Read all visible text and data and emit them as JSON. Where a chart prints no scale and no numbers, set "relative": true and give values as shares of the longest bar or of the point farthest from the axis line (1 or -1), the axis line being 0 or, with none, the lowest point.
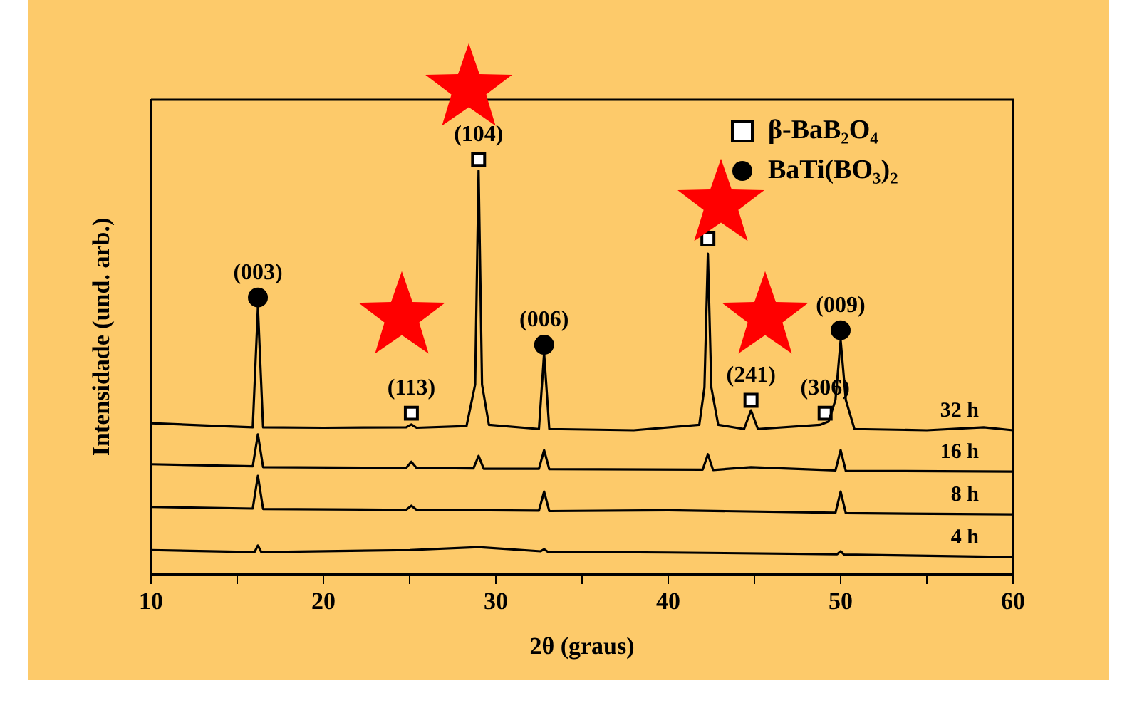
{
  "chart_data": {
    "type": "line",
    "relative": true,
    "xlabel": "2θ (graus)",
    "ylabel": "Intensidade (und. arb.)",
    "xlim": [
      10,
      60
    ],
    "xticks": [
      10,
      {
        "value": 15,
        "label": null
      },
      20,
      {
        "value": 25,
        "label": null
      },
      30,
      {
        "value": 35,
        "label": null
      },
      40,
      {
        "value": 45,
        "label": null
      },
      50,
      {
        "value": 55,
        "label": null
      },
      60
    ],
    "grid": false,
    "legend": "top right",
    "series": [
      {
        "name": "32 h",
        "color": "#000000",
        "x": [
          10,
          14,
          15.9,
          16.2,
          16.5,
          20,
          24.8,
          25.1,
          25.4,
          28.3,
          28.8,
          29.0,
          29.2,
          29.6,
          32.5,
          32.8,
          33.1,
          38,
          41.8,
          42.1,
          42.3,
          42.5,
          42.9,
          44.4,
          44.8,
          45.2,
          48.8,
          49.3,
          49.7,
          50.0,
          50.3,
          50.8,
          55,
          58.3,
          60
        ],
        "values": [
          0.364,
          0.357,
          0.354,
          0.643,
          0.354,
          0.353,
          0.354,
          0.361,
          0.353,
          0.357,
          0.457,
          0.973,
          0.457,
          0.36,
          0.35,
          0.533,
          0.35,
          0.347,
          0.36,
          0.45,
          0.773,
          0.45,
          0.36,
          0.35,
          0.395,
          0.35,
          0.36,
          0.368,
          0.42,
          0.564,
          0.42,
          0.35,
          0.347,
          0.354,
          0.347
        ]
      },
      {
        "name": "16 h",
        "color": "#000000",
        "x": [
          10,
          15.9,
          16.2,
          16.5,
          24.8,
          25.1,
          25.4,
          28.7,
          29.0,
          29.3,
          32.5,
          32.8,
          33.1,
          42.0,
          42.3,
          42.6,
          44.8,
          49.7,
          50.0,
          50.3,
          60
        ],
        "values": [
          0.265,
          0.26,
          0.337,
          0.258,
          0.256,
          0.271,
          0.256,
          0.255,
          0.285,
          0.254,
          0.254,
          0.299,
          0.253,
          0.252,
          0.289,
          0.251,
          0.258,
          0.25,
          0.299,
          0.249,
          0.247
        ]
      },
      {
        "name": "8 h",
        "color": "#000000",
        "x": [
          10,
          15.9,
          16.2,
          16.5,
          24.8,
          25.1,
          25.4,
          32.5,
          32.8,
          33.1,
          40,
          49.7,
          50.0,
          50.3,
          60
        ],
        "values": [
          0.162,
          0.158,
          0.237,
          0.157,
          0.155,
          0.165,
          0.155,
          0.153,
          0.199,
          0.152,
          0.154,
          0.148,
          0.199,
          0.147,
          0.144
        ]
      },
      {
        "name": "4 h",
        "color": "#000000",
        "x": [
          10,
          16.0,
          16.2,
          16.4,
          25,
          29,
          32.6,
          32.8,
          33.0,
          40,
          49.8,
          50.0,
          50.2,
          60
        ],
        "values": [
          0.058,
          0.053,
          0.069,
          0.053,
          0.058,
          0.065,
          0.055,
          0.06,
          0.054,
          0.052,
          0.048,
          0.055,
          0.047,
          0.041
        ]
      },
      {
        "name": "β-BaB₂O₄",
        "type": "scatter",
        "marker": "square",
        "color": "#000000",
        "x": [
          25.1,
          29.0,
          42.3,
          44.8,
          49.1
        ],
        "values": [
          0.388,
          1.0,
          0.808,
          0.419,
          0.388
        ]
      },
      {
        "name": "BaTi(BO₃)₂",
        "type": "scatter",
        "marker": "circle",
        "color": "#000000",
        "x": [
          16.2,
          32.8,
          50.0
        ],
        "values": [
          0.667,
          0.553,
          0.588
        ]
      }
    ],
    "annotations": [
      {
        "text": "(003)",
        "x": 16.2,
        "y": 0.667
      },
      {
        "text": "(113)",
        "x": 25.1,
        "y": 0.388
      },
      {
        "text": "(104)",
        "x": 29.0,
        "y": 1.0
      },
      {
        "text": "(006)",
        "x": 32.8,
        "y": 0.553
      },
      {
        "text": "(241)",
        "x": 44.8,
        "y": 0.419
      },
      {
        "text": "(306)",
        "x": 49.1,
        "y": 0.388
      },
      {
        "text": "(009)",
        "x": 50.0,
        "y": 0.588
      }
    ]
  }
}
